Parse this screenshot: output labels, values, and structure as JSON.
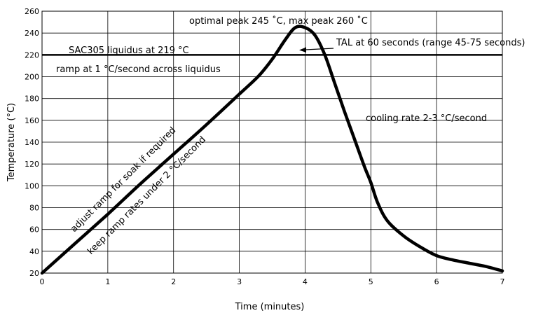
{
  "chart_data": {
    "type": "line",
    "title": "",
    "xlabel": "Time  (minutes)",
    "ylabel": "Temperature (°C)",
    "xlim": [
      0,
      7
    ],
    "ylim": [
      20,
      260
    ],
    "x_ticks": [
      0,
      1,
      2,
      3,
      4,
      5,
      6,
      7
    ],
    "y_ticks": [
      20,
      40,
      60,
      80,
      100,
      120,
      140,
      160,
      180,
      200,
      220,
      240,
      260
    ],
    "grid": true,
    "colors": {
      "line": "#000000",
      "grid": "#000000"
    },
    "series": [
      {
        "x": [
          0,
          0.5,
          1,
          1.5,
          2,
          2.5,
          3,
          3.3,
          3.5,
          3.7,
          3.85,
          4.0,
          4.15,
          4.3,
          4.45,
          4.6,
          4.75,
          4.9,
          5.0,
          5.1,
          5.25,
          5.5,
          5.75,
          6.0,
          6.25,
          6.5,
          6.75,
          7.0
        ],
        "y": [
          20,
          47,
          74,
          102,
          129,
          156,
          184,
          201,
          216,
          234,
          245,
          245,
          238,
          220,
          194,
          168,
          143,
          118,
          103,
          85,
          68,
          54,
          44,
          36,
          32,
          29,
          26,
          22
        ]
      }
    ],
    "reference_line": {
      "y": 220
    },
    "annotations": [
      {
        "id": "peak",
        "text": "optimal peak 245 ˚C, max peak 260 ˚C"
      },
      {
        "id": "tal",
        "text": "TAL at 60 seconds (range 45-75 seconds)"
      },
      {
        "id": "liquidus",
        "text": "SAC305 liquidus at 219 °C"
      },
      {
        "id": "ramp-liquidus",
        "text": "ramp at 1 °C/second across liquidus"
      },
      {
        "id": "cooling",
        "text": "cooling rate 2-3 °C/second"
      },
      {
        "id": "soak",
        "text": "adjust ramp for soak if required"
      },
      {
        "id": "ramp-rates",
        "text": "keep ramp rates under 2 °C/second"
      }
    ]
  }
}
